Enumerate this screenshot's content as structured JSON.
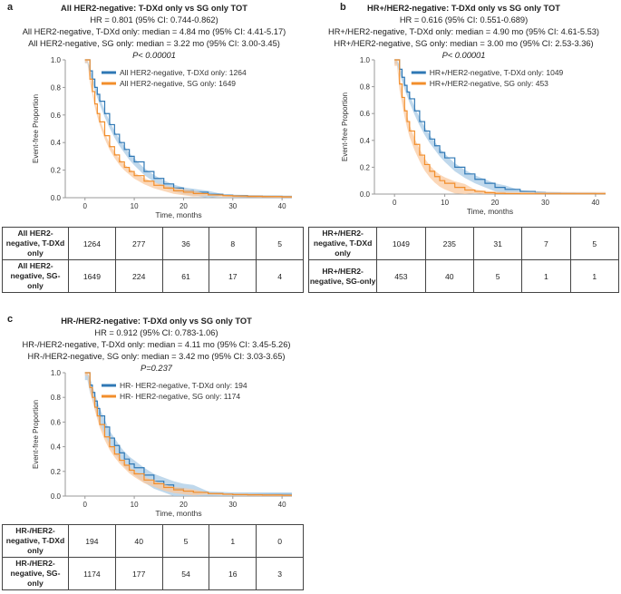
{
  "colors": {
    "tdxd": "#2f78b5",
    "sg": "#f28e2b",
    "tdxd_ci": "#a9cbe6",
    "sg_ci": "#f9c9a0",
    "axis": "#999999",
    "grid_text": "#333333"
  },
  "panels": [
    {
      "id": "a",
      "label": "a",
      "title": "All HER2-negative: T-DXd only vs SG only TOT",
      "hr": "HR = 0.801 (95% CI: 0.744-0.862)",
      "median1": "All HER2-negative, T-DXd only: median = 4.84 mo (95% CI: 4.41-5.17)",
      "median2": "All HER2-negative, SG only: median = 3.22 mo (95% CI: 3.00-3.45)",
      "pvalue": "P< 0.00001",
      "risk_rows": [
        {
          "label": "All HER2-negative, T-DXd only",
          "values": [
            "1264",
            "277",
            "36",
            "8",
            "5"
          ]
        },
        {
          "label": "All HER2-negative, SG-only",
          "values": [
            "1649",
            "224",
            "61",
            "17",
            "4"
          ]
        }
      ]
    },
    {
      "id": "b",
      "label": "b",
      "title": "HR+/HER2-negative: T-DXd only vs SG only TOT",
      "hr": "HR = 0.616 (95% CI: 0.551-0.689)",
      "median1": "HR+/HER2-negative, T-DXd only: median = 4.90 mo (95% CI: 4.61-5.53)",
      "median2": "HR+/HER2-negative, SG only: median = 3.00 mo (95% CI: 2.53-3.36)",
      "pvalue": "P< 0.00001",
      "risk_rows": [
        {
          "label": "HR+/HER2-negative, T-DXd only",
          "values": [
            "1049",
            "235",
            "31",
            "7",
            "5"
          ]
        },
        {
          "label": "HR+/HER2-negative, SG-only",
          "values": [
            "453",
            "40",
            "5",
            "1",
            "1"
          ]
        }
      ]
    },
    {
      "id": "c",
      "label": "c",
      "title": "HR-/HER2-negative: T-DXd only vs SG only TOT",
      "hr": "HR = 0.912 (95% CI: 0.783-1.06)",
      "median1": "HR-/HER2-negative, T-DXd only: median = 4.11 mo (95% CI: 3.45-5.26)",
      "median2": "HR-/HER2-negative, SG only: median = 3.42 mo (95% CI: 3.03-3.65)",
      "pvalue": "P=0.237",
      "risk_rows": [
        {
          "label": "HR-/HER2-negative, T-DXd only",
          "values": [
            "194",
            "40",
            "5",
            "1",
            "0"
          ]
        },
        {
          "label": "HR-/HER2-negative, SG-only",
          "values": [
            "1174",
            "177",
            "54",
            "16",
            "3"
          ]
        }
      ]
    }
  ],
  "chart_data": [
    {
      "type": "line",
      "panel": "a",
      "title": "All HER2-negative: T-DXd only vs SG only TOT",
      "xlabel": "Time, months",
      "ylabel": "Event-free Proportion",
      "xlim": [
        -4,
        42
      ],
      "ylim": [
        0,
        1
      ],
      "xticks": [
        0,
        10,
        20,
        30,
        40
      ],
      "yticks": [
        "0.0",
        "0.2",
        "0.4",
        "0.6",
        "0.8",
        "1.0"
      ],
      "x": [
        0,
        0.5,
        1,
        1.5,
        2,
        2.5,
        3,
        4,
        5,
        6,
        7,
        8,
        9,
        10,
        12,
        14,
        16,
        18,
        20,
        22,
        25,
        28,
        30,
        33,
        36,
        40,
        42
      ],
      "series": [
        {
          "name": "All HER2-negative, T-DXd only: 1264",
          "color_key": "tdxd",
          "ci_width": 0.025,
          "values": [
            1.0,
            1.0,
            0.92,
            0.86,
            0.8,
            0.75,
            0.7,
            0.61,
            0.53,
            0.46,
            0.4,
            0.35,
            0.3,
            0.26,
            0.19,
            0.14,
            0.1,
            0.07,
            0.05,
            0.04,
            0.025,
            0.018,
            0.015,
            0.012,
            0.01,
            0.008,
            0.008
          ]
        },
        {
          "name": "All HER2-negative, SG only: 1649",
          "color_key": "sg",
          "ci_width": 0.022,
          "values": [
            1.0,
            1.0,
            0.86,
            0.77,
            0.68,
            0.61,
            0.55,
            0.45,
            0.37,
            0.31,
            0.26,
            0.22,
            0.19,
            0.16,
            0.12,
            0.09,
            0.07,
            0.05,
            0.04,
            0.03,
            0.02,
            0.015,
            0.012,
            0.01,
            0.008,
            0.006,
            0.006
          ]
        }
      ]
    },
    {
      "type": "line",
      "panel": "b",
      "title": "HR+/HER2-negative: T-DXd only vs SG only TOT",
      "xlabel": "Time, months",
      "ylabel": "Event-free Proportion",
      "xlim": [
        -4,
        42
      ],
      "ylim": [
        0,
        1
      ],
      "xticks": [
        0,
        10,
        20,
        30,
        40
      ],
      "yticks": [
        "0.0",
        "0.2",
        "0.4",
        "0.6",
        "0.8",
        "1.0"
      ],
      "x": [
        0,
        0.5,
        1,
        1.5,
        2,
        2.5,
        3,
        4,
        5,
        6,
        7,
        8,
        9,
        10,
        12,
        14,
        16,
        18,
        20,
        22,
        25,
        28,
        30,
        33,
        36,
        40,
        42
      ],
      "series": [
        {
          "name": "HR+/HER2-negative, T-DXd only: 1049",
          "color_key": "tdxd",
          "ci_width": 0.03,
          "values": [
            1.0,
            1.0,
            0.93,
            0.87,
            0.81,
            0.76,
            0.71,
            0.62,
            0.54,
            0.47,
            0.41,
            0.36,
            0.31,
            0.27,
            0.2,
            0.15,
            0.11,
            0.08,
            0.05,
            0.035,
            0.02,
            0.012,
            0.008,
            0.005,
            0.004,
            0.003,
            0.003
          ]
        },
        {
          "name": "HR+/HER2-negative, SG only: 453",
          "color_key": "sg",
          "ci_width": 0.045,
          "values": [
            1.0,
            1.0,
            0.82,
            0.72,
            0.62,
            0.54,
            0.47,
            0.37,
            0.29,
            0.22,
            0.17,
            0.13,
            0.1,
            0.08,
            0.05,
            0.03,
            0.02,
            0.01,
            0.005,
            0.003,
            0.002,
            0.002,
            0.002,
            0.002,
            0.002,
            0.002,
            0.002
          ]
        }
      ]
    },
    {
      "type": "line",
      "panel": "c",
      "title": "HR-/HER2-negative: T-DXd only vs SG only TOT",
      "xlabel": "Time, months",
      "ylabel": "Event-free Proportion",
      "xlim": [
        -4,
        42
      ],
      "ylim": [
        0,
        1
      ],
      "xticks": [
        0,
        10,
        20,
        30,
        40
      ],
      "yticks": [
        "0.0",
        "0.2",
        "0.4",
        "0.6",
        "0.8",
        "1.0"
      ],
      "x": [
        0,
        0.5,
        1,
        1.5,
        2,
        2.5,
        3,
        4,
        5,
        6,
        7,
        8,
        9,
        10,
        12,
        14,
        16,
        18,
        20,
        22,
        25,
        28,
        30,
        33,
        36,
        40,
        42
      ],
      "series": [
        {
          "name": "HR- HER2-negative, T-DXd only: 194",
          "color_key": "tdxd",
          "ci_width": 0.06,
          "values": [
            1.0,
            1.0,
            0.9,
            0.84,
            0.77,
            0.71,
            0.65,
            0.56,
            0.47,
            0.41,
            0.35,
            0.3,
            0.26,
            0.23,
            0.17,
            0.12,
            0.09,
            0.06,
            0.04,
            0.03,
            0.02,
            0.015,
            0.012,
            0.012,
            0.012,
            0.012,
            0.012
          ]
        },
        {
          "name": "HR- HER2-negative, SG only: 1174",
          "color_key": "sg",
          "ci_width": 0.025,
          "values": [
            1.0,
            1.0,
            0.88,
            0.8,
            0.72,
            0.65,
            0.58,
            0.48,
            0.4,
            0.34,
            0.29,
            0.25,
            0.21,
            0.18,
            0.13,
            0.1,
            0.07,
            0.05,
            0.04,
            0.03,
            0.02,
            0.015,
            0.012,
            0.01,
            0.008,
            0.006,
            0.006
          ]
        }
      ]
    }
  ]
}
